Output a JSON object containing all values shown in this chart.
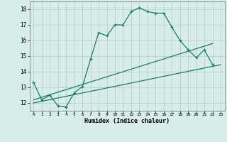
{
  "xlabel": "Humidex (Indice chaleur)",
  "bg_color": "#d8ecea",
  "grid_color": "#b0ccca",
  "line_color": "#1a7a6e",
  "xlim": [
    -0.5,
    23.5
  ],
  "ylim": [
    11.5,
    18.5
  ],
  "xticks": [
    0,
    1,
    2,
    3,
    4,
    5,
    6,
    7,
    8,
    9,
    10,
    11,
    12,
    13,
    14,
    15,
    16,
    17,
    18,
    19,
    20,
    21,
    22,
    23
  ],
  "yticks": [
    12,
    13,
    14,
    15,
    16,
    17,
    18
  ],
  "line1_x": [
    0,
    1,
    2,
    3,
    4,
    5,
    6,
    7,
    8,
    9,
    10,
    11,
    12,
    13,
    14,
    15,
    16,
    17,
    18,
    19,
    20,
    21,
    22
  ],
  "line1_y": [
    13.3,
    12.2,
    12.5,
    11.8,
    11.75,
    12.65,
    13.05,
    14.8,
    16.5,
    16.3,
    17.0,
    17.0,
    17.85,
    18.1,
    17.85,
    17.75,
    17.75,
    16.85,
    16.0,
    15.4,
    14.9,
    15.4,
    14.45
  ],
  "line2_x": [
    0,
    23
  ],
  "line2_y": [
    12.0,
    14.45
  ],
  "line3_x": [
    0,
    22
  ],
  "line3_y": [
    12.2,
    15.8
  ],
  "markers_on_line1": true
}
